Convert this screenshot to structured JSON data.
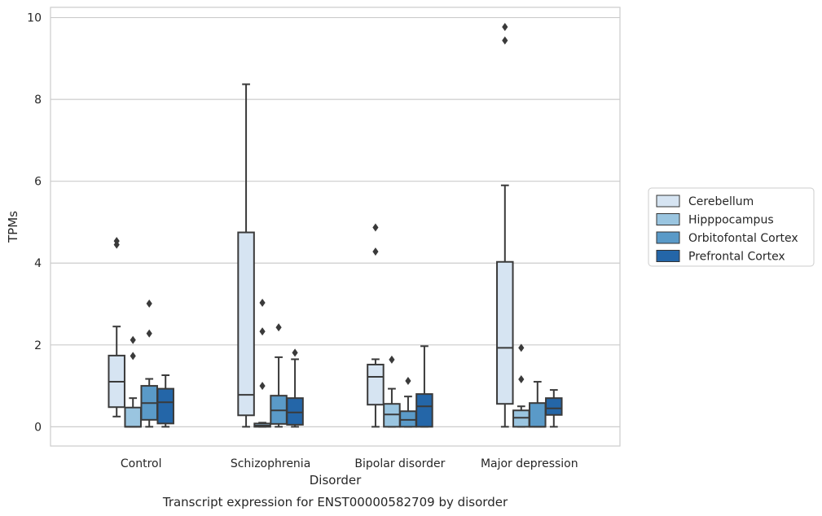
{
  "chart_data": {
    "type": "boxplot",
    "title": "",
    "caption": "Transcript expression for ENST00000582709 by disorder",
    "xlabel": "Disorder",
    "ylabel": "TPMs",
    "ylim": [
      -0.47,
      10.25
    ],
    "yticks": [
      0,
      2,
      4,
      6,
      8,
      10
    ],
    "grid": true,
    "legend_position": "right",
    "categories": [
      "Control",
      "Schizophrenia",
      "Bipolar disorder",
      "Major depression"
    ],
    "series": [
      {
        "name": "Cerebellum",
        "color": "#d6e4f2",
        "boxes": [
          {
            "wlow": 0.25,
            "q1": 0.48,
            "median": 1.1,
            "q3": 1.74,
            "whigh": 2.45,
            "fliers": [
              4.45,
              4.54
            ]
          },
          {
            "wlow": 0.0,
            "q1": 0.28,
            "median": 0.78,
            "q3": 4.75,
            "whigh": 8.37,
            "fliers": []
          },
          {
            "wlow": 0.0,
            "q1": 0.54,
            "median": 1.22,
            "q3": 1.52,
            "whigh": 1.65,
            "fliers": [
              4.28,
              4.87
            ]
          },
          {
            "wlow": 0.0,
            "q1": 0.56,
            "median": 1.93,
            "q3": 4.03,
            "whigh": 5.9,
            "fliers": [
              9.44,
              9.77
            ]
          }
        ]
      },
      {
        "name": "Hipppocampus",
        "color": "#9ac5e0",
        "boxes": [
          {
            "wlow": 0.0,
            "q1": 0.0,
            "median": 0.0,
            "q3": 0.47,
            "whigh": 0.7,
            "fliers": [
              1.73,
              2.12
            ]
          },
          {
            "wlow": 0.0,
            "q1": 0.0,
            "median": 0.03,
            "q3": 0.08,
            "whigh": 0.1,
            "fliers": [
              1.0,
              2.33,
              3.03
            ]
          },
          {
            "wlow": 0.0,
            "q1": 0.0,
            "median": 0.3,
            "q3": 0.56,
            "whigh": 0.93,
            "fliers": [
              1.64
            ]
          },
          {
            "wlow": 0.0,
            "q1": 0.0,
            "median": 0.22,
            "q3": 0.4,
            "whigh": 0.5,
            "fliers": [
              1.16,
              1.93
            ]
          }
        ]
      },
      {
        "name": "Orbitofontal Cortex",
        "color": "#5a9ac8",
        "boxes": [
          {
            "wlow": 0.0,
            "q1": 0.17,
            "median": 0.58,
            "q3": 1.0,
            "whigh": 1.17,
            "fliers": [
              2.28,
              3.01
            ]
          },
          {
            "wlow": 0.0,
            "q1": 0.07,
            "median": 0.4,
            "q3": 0.76,
            "whigh": 1.7,
            "fliers": [
              2.43
            ]
          },
          {
            "wlow": 0.0,
            "q1": 0.0,
            "median": 0.17,
            "q3": 0.38,
            "whigh": 0.74,
            "fliers": [
              1.12
            ]
          },
          {
            "wlow": 0.0,
            "q1": 0.0,
            "median": 0.0,
            "q3": 0.58,
            "whigh": 1.1,
            "fliers": []
          }
        ]
      },
      {
        "name": "Prefrontal Cortex",
        "color": "#2466a8",
        "boxes": [
          {
            "wlow": 0.0,
            "q1": 0.08,
            "median": 0.6,
            "q3": 0.93,
            "whigh": 1.26,
            "fliers": []
          },
          {
            "wlow": 0.0,
            "q1": 0.05,
            "median": 0.35,
            "q3": 0.7,
            "whigh": 1.65,
            "fliers": [
              1.81
            ]
          },
          {
            "wlow": 0.0,
            "q1": 0.0,
            "median": 0.5,
            "q3": 0.8,
            "whigh": 1.97,
            "fliers": []
          },
          {
            "wlow": 0.0,
            "q1": 0.29,
            "median": 0.45,
            "q3": 0.7,
            "whigh": 0.9,
            "fliers": []
          }
        ]
      }
    ]
  }
}
